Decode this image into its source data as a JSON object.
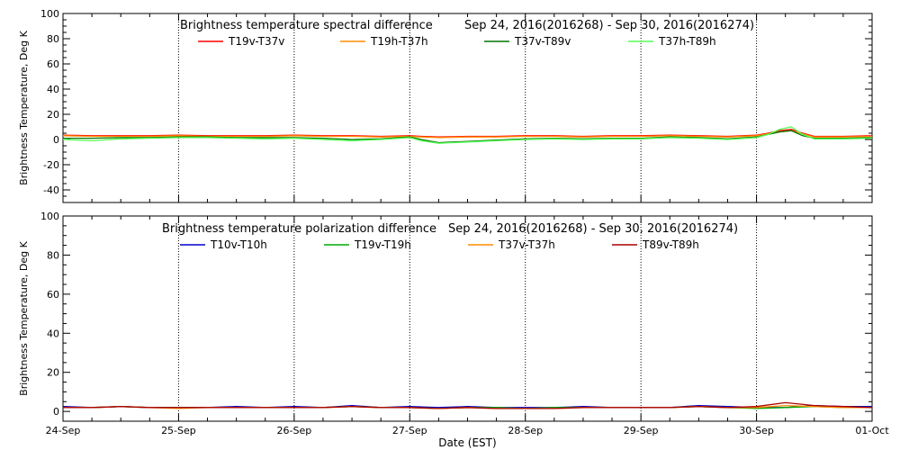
{
  "chart_data": [
    {
      "type": "line",
      "title": "Brightness temperature spectral difference",
      "date_range": "Sep 24, 2016(2016268) - Sep 30, 2016(2016274)",
      "ylabel": "Brightness Temperature, Deg K",
      "xlabel": "",
      "ylim": [
        -50,
        100
      ],
      "yticks": [
        -40,
        -20,
        0,
        20,
        40,
        60,
        80,
        100
      ],
      "xlim": [
        0,
        7
      ],
      "x_ticks": [
        0,
        1,
        2,
        3,
        4,
        5,
        6,
        7
      ],
      "x_tick_labels": [],
      "grid": "vertical dotted lines at each day",
      "legend_placement": "top",
      "x": [
        0,
        0.25,
        0.5,
        0.75,
        1,
        1.25,
        1.5,
        1.75,
        2,
        2.25,
        2.5,
        2.75,
        3,
        3.1,
        3.25,
        3.5,
        3.75,
        4,
        4.25,
        4.5,
        4.75,
        5,
        5.25,
        5.5,
        5.75,
        6,
        6.1,
        6.2,
        6.3,
        6.4,
        6.5,
        6.75,
        7
      ],
      "series": [
        {
          "name": "T19v-T37v",
          "color": "#ff0000",
          "values": [
            3.5,
            3,
            3,
            3,
            3.5,
            3,
            3,
            3,
            3.5,
            3,
            3,
            2.5,
            3,
            2.5,
            2,
            2.5,
            2.5,
            3,
            3,
            2.5,
            3,
            3,
            3.5,
            3,
            2.5,
            3.5,
            5,
            7,
            8,
            5,
            2.5,
            2.5,
            3
          ]
        },
        {
          "name": "T19h-T37h",
          "color": "#ff8c00",
          "values": [
            3,
            2.5,
            2.5,
            2.5,
            3,
            2.5,
            2.5,
            2.5,
            3,
            2.5,
            2.5,
            2,
            2.5,
            2,
            1.5,
            2,
            2,
            2.5,
            2.5,
            2,
            2.5,
            2.5,
            3,
            2.5,
            2,
            3,
            4.5,
            6,
            7,
            4.5,
            2,
            2,
            2.5
          ]
        },
        {
          "name": "T37v-T89v",
          "color": "#007700",
          "values": [
            1,
            1,
            1.5,
            1.5,
            2,
            2,
            1.5,
            1.5,
            1.5,
            1,
            0,
            0.5,
            2,
            0,
            -2.5,
            -1.5,
            -0.5,
            0.5,
            1,
            0.5,
            1,
            1,
            2,
            1.5,
            0.5,
            2,
            4,
            6,
            7,
            3,
            1,
            1,
            1.5
          ]
        },
        {
          "name": "T37h-T89h",
          "color": "#55ff55",
          "values": [
            0,
            -1,
            0.5,
            1,
            1.5,
            1.5,
            1,
            0.5,
            1,
            0,
            -1,
            0,
            1.5,
            -1,
            -3,
            -2,
            -1,
            0,
            0.5,
            0,
            0.5,
            0.5,
            1.5,
            1,
            0,
            1.5,
            4,
            8,
            10,
            4,
            0.5,
            0.5,
            1
          ]
        }
      ]
    },
    {
      "type": "line",
      "title": "Brightness temperature polarization difference",
      "date_range": "Sep 24, 2016(2016268) - Sep 30, 2016(2016274)",
      "ylabel": "Brightness Temperature, Deg K",
      "xlabel": "Date (EST)",
      "ylim": [
        -5,
        100
      ],
      "yticks": [
        0,
        20,
        40,
        60,
        80,
        100
      ],
      "xlim": [
        0,
        7
      ],
      "x_ticks": [
        0,
        1,
        2,
        3,
        4,
        5,
        6,
        7
      ],
      "x_tick_labels": [
        "24-Sep",
        "25-Sep",
        "26-Sep",
        "27-Sep",
        "28-Sep",
        "29-Sep",
        "30-Sep",
        "01-Oct"
      ],
      "grid": "vertical dotted lines at each day",
      "legend_placement": "top",
      "x": [
        0,
        0.25,
        0.5,
        0.75,
        1,
        1.25,
        1.5,
        1.75,
        2,
        2.25,
        2.5,
        2.75,
        3,
        3.25,
        3.5,
        3.75,
        4,
        4.25,
        4.5,
        4.75,
        5,
        5.25,
        5.5,
        5.75,
        6,
        6.25,
        6.5,
        6.75,
        7
      ],
      "series": [
        {
          "name": "T10v-T10h",
          "color": "#0000cc",
          "values": [
            2.5,
            2,
            2.5,
            2,
            2,
            2,
            2.5,
            2,
            2.5,
            2,
            3,
            2,
            2.5,
            2,
            2.5,
            2,
            2,
            2,
            2.5,
            2,
            2,
            2,
            3,
            2.5,
            2,
            2,
            3,
            2.5,
            2.5
          ]
        },
        {
          "name": "T19v-T19h",
          "color": "#00aa00",
          "values": [
            2,
            2,
            2.5,
            2,
            2,
            2,
            2,
            2,
            2,
            2,
            2.5,
            2,
            2,
            1.5,
            2,
            2,
            1.5,
            2,
            2,
            2,
            2,
            2,
            2.5,
            2,
            1.5,
            2,
            2.5,
            2,
            2
          ]
        },
        {
          "name": "T37v-T37h",
          "color": "#ff8c00",
          "values": [
            2,
            2,
            2.5,
            2,
            1.5,
            2,
            2,
            2,
            2,
            2,
            2.5,
            2,
            2,
            1.5,
            2,
            1.5,
            1.5,
            1.5,
            2,
            2,
            2,
            2,
            2.5,
            2,
            2,
            3,
            2.5,
            2,
            2
          ]
        },
        {
          "name": "T89v-T89h",
          "color": "#aa0000",
          "values": [
            2,
            2,
            2.5,
            2,
            2,
            2,
            2,
            2,
            2,
            2,
            2.5,
            2,
            2,
            1.5,
            2,
            1.5,
            1.5,
            1.5,
            2,
            2,
            2,
            2,
            2.5,
            2,
            2.5,
            4.5,
            3,
            2.5,
            2
          ]
        }
      ]
    }
  ]
}
